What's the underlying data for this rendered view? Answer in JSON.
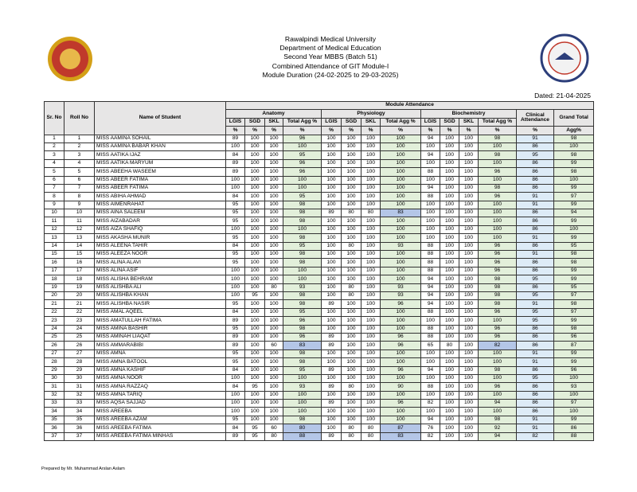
{
  "header": {
    "lines": [
      "Rawalpindi Medical University",
      "Department of Medical Education",
      "Second Year MBBS (Batch 51)",
      "Combined Attendance of GIT Module-I",
      "Module Duration (24-02-2025 to 29-03-2025)"
    ],
    "dated": "Dated: 21-04-2025"
  },
  "table": {
    "sr_header": "Sr. No",
    "roll_header": "Roll No",
    "name_header": "Name of Student",
    "group_header": "Module Attendance",
    "subjects": [
      "Anatomy",
      "Physiology",
      "Biochemistry"
    ],
    "sub_columns": [
      "LGIS",
      "SGD",
      "SKL",
      "Total Agg %"
    ],
    "unit": "%",
    "clinical_header": "Clinical Attendance",
    "grand_header": "Grand Total",
    "grand_unit": "Agg%",
    "rows": [
      [
        1,
        1,
        "MISS AAMINA SOHAIL",
        89,
        100,
        100,
        96,
        100,
        100,
        100,
        100,
        94,
        100,
        100,
        98,
        91,
        98
      ],
      [
        2,
        2,
        "MISS AAMINA BABAR KHAN",
        100,
        100,
        100,
        100,
        100,
        100,
        100,
        100,
        100,
        100,
        100,
        100,
        86,
        100
      ],
      [
        3,
        3,
        "MISS AATIKA IJAZ",
        84,
        100,
        100,
        95,
        100,
        100,
        100,
        100,
        94,
        100,
        100,
        98,
        95,
        98
      ],
      [
        4,
        4,
        "MISS AATIKA MARYUM",
        89,
        100,
        100,
        96,
        100,
        100,
        100,
        100,
        100,
        100,
        100,
        100,
        86,
        99
      ],
      [
        5,
        5,
        "MISS ABEEHA WASEEM",
        89,
        100,
        100,
        96,
        100,
        100,
        100,
        100,
        88,
        100,
        100,
        96,
        86,
        98
      ],
      [
        6,
        6,
        "MISS ABEER FATIMA",
        100,
        100,
        100,
        100,
        100,
        100,
        100,
        100,
        100,
        100,
        100,
        100,
        86,
        100
      ],
      [
        7,
        7,
        "MISS ABEER FATIMA",
        100,
        100,
        100,
        100,
        100,
        100,
        100,
        100,
        94,
        100,
        100,
        98,
        86,
        99
      ],
      [
        8,
        8,
        "MISS ABIHA AHMAD",
        84,
        100,
        100,
        95,
        100,
        100,
        100,
        100,
        88,
        100,
        100,
        96,
        91,
        97
      ],
      [
        9,
        9,
        "MISS AIMENRAHAT",
        95,
        100,
        100,
        98,
        100,
        100,
        100,
        100,
        100,
        100,
        100,
        100,
        91,
        99
      ],
      [
        10,
        10,
        "MISS AINA SALEEM",
        95,
        100,
        100,
        98,
        89,
        80,
        80,
        83,
        100,
        100,
        100,
        100,
        86,
        94
      ],
      [
        11,
        11,
        "MISS AIZABADAR",
        95,
        100,
        100,
        98,
        100,
        100,
        100,
        100,
        100,
        100,
        100,
        100,
        86,
        99
      ],
      [
        12,
        12,
        "MISS AIZA SHAFIQ",
        100,
        100,
        100,
        100,
        100,
        100,
        100,
        100,
        100,
        100,
        100,
        100,
        86,
        100
      ],
      [
        13,
        13,
        "MISS AKASHA MUNIR",
        95,
        100,
        100,
        98,
        100,
        100,
        100,
        100,
        100,
        100,
        100,
        100,
        91,
        99
      ],
      [
        14,
        14,
        "MISS ALEENA TAHIR",
        84,
        100,
        100,
        95,
        100,
        80,
        100,
        93,
        88,
        100,
        100,
        96,
        86,
        95
      ],
      [
        15,
        15,
        "MISS ALEEZA NOOR",
        95,
        100,
        100,
        98,
        100,
        100,
        100,
        100,
        88,
        100,
        100,
        96,
        91,
        98
      ],
      [
        16,
        16,
        "MISS ALINA ALAVI",
        95,
        100,
        100,
        98,
        100,
        100,
        100,
        100,
        88,
        100,
        100,
        96,
        86,
        98
      ],
      [
        17,
        17,
        "MISS ALINA ASIF",
        100,
        100,
        100,
        100,
        100,
        100,
        100,
        100,
        88,
        100,
        100,
        96,
        86,
        99
      ],
      [
        18,
        18,
        "MISS ALISHA BEHRAM",
        100,
        100,
        100,
        100,
        100,
        100,
        100,
        100,
        94,
        100,
        100,
        98,
        95,
        99
      ],
      [
        19,
        19,
        "MISS ALISHBA ALI",
        100,
        100,
        80,
        93,
        100,
        80,
        100,
        93,
        94,
        100,
        100,
        98,
        86,
        95
      ],
      [
        20,
        20,
        "MISS ALISHBA KHAN",
        100,
        95,
        100,
        98,
        100,
        80,
        100,
        93,
        94,
        100,
        100,
        98,
        95,
        97
      ],
      [
        21,
        21,
        "MISS ALISHBA NASIR",
        95,
        100,
        100,
        98,
        89,
        100,
        100,
        96,
        94,
        100,
        100,
        98,
        91,
        98
      ],
      [
        22,
        22,
        "MISS AMAL AQEEL",
        84,
        100,
        100,
        95,
        100,
        100,
        100,
        100,
        88,
        100,
        100,
        96,
        95,
        97
      ],
      [
        23,
        23,
        "MISS AMATULLAH FATIMA",
        89,
        100,
        100,
        96,
        100,
        100,
        100,
        100,
        100,
        100,
        100,
        100,
        95,
        99
      ],
      [
        24,
        24,
        "MISS AMINA BASHIR",
        95,
        100,
        100,
        98,
        100,
        100,
        100,
        100,
        88,
        100,
        100,
        96,
        86,
        98
      ],
      [
        25,
        25,
        "MISS AMINAH LIAQAT",
        89,
        100,
        100,
        96,
        89,
        100,
        100,
        96,
        88,
        100,
        100,
        96,
        86,
        96
      ],
      [
        26,
        26,
        "MISS AMMARABIBI",
        89,
        100,
        60,
        83,
        89,
        100,
        100,
        96,
        65,
        80,
        100,
        82,
        86,
        87
      ],
      [
        27,
        27,
        "MISS AMNA",
        95,
        100,
        100,
        98,
        100,
        100,
        100,
        100,
        100,
        100,
        100,
        100,
        91,
        99
      ],
      [
        28,
        28,
        "MISS AMNA BATOOL",
        95,
        100,
        100,
        98,
        100,
        100,
        100,
        100,
        100,
        100,
        100,
        100,
        91,
        99
      ],
      [
        29,
        29,
        "MISS AMNA KASHIF",
        84,
        100,
        100,
        95,
        89,
        100,
        100,
        96,
        94,
        100,
        100,
        98,
        86,
        96
      ],
      [
        30,
        30,
        "MISS AMNA NOOR",
        100,
        100,
        100,
        100,
        100,
        100,
        100,
        100,
        100,
        100,
        100,
        100,
        95,
        100
      ],
      [
        31,
        31,
        "MISS AMNA RAZZAQ",
        84,
        95,
        100,
        93,
        89,
        80,
        100,
        90,
        88,
        100,
        100,
        96,
        86,
        93
      ],
      [
        32,
        32,
        "MISS AMNA TARIQ",
        100,
        100,
        100,
        100,
        100,
        100,
        100,
        100,
        100,
        100,
        100,
        100,
        86,
        100
      ],
      [
        33,
        33,
        "MISS AQSA SAJJAD",
        100,
        100,
        100,
        100,
        89,
        100,
        100,
        96,
        82,
        100,
        100,
        94,
        86,
        97
      ],
      [
        34,
        34,
        "MISS AREEBA",
        100,
        100,
        100,
        100,
        100,
        100,
        100,
        100,
        100,
        100,
        100,
        100,
        86,
        100
      ],
      [
        35,
        35,
        "MISS AREEBA AZAM",
        95,
        100,
        100,
        98,
        100,
        100,
        100,
        100,
        94,
        100,
        100,
        98,
        91,
        99
      ],
      [
        36,
        36,
        "MISS AREEBA FATIMA",
        84,
        95,
        60,
        80,
        100,
        80,
        80,
        87,
        76,
        100,
        100,
        92,
        91,
        86
      ],
      [
        37,
        37,
        "MISS AREEBA FATIMA MINHAS",
        89,
        95,
        80,
        88,
        89,
        80,
        80,
        83,
        82,
        100,
        100,
        94,
        82,
        88
      ]
    ]
  },
  "footer": "Prepared by Mr. Muhammad Arslan Aslam"
}
